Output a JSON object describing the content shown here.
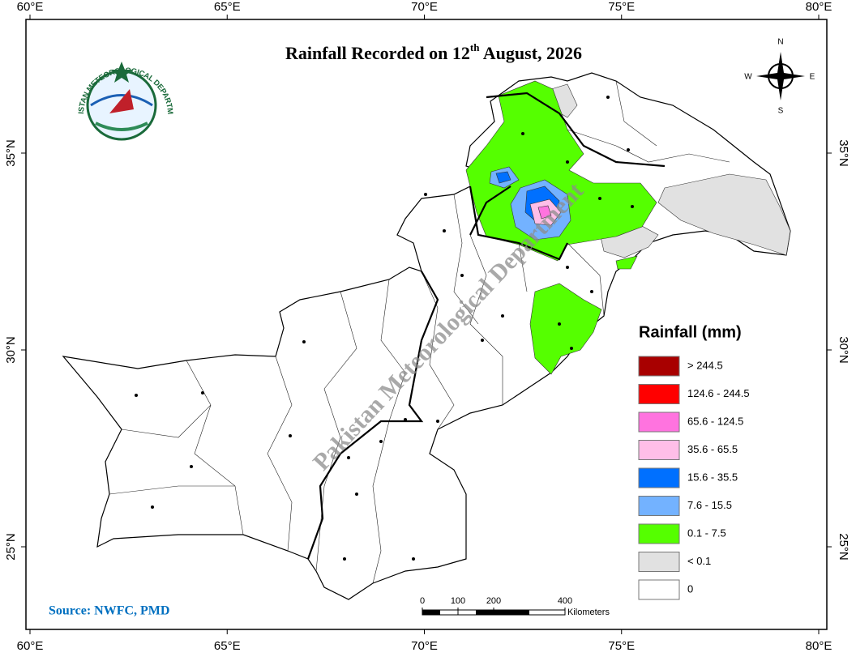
{
  "map": {
    "title": {
      "main": "Rainfall  Recorded on 12",
      "sup": "th",
      "rest": " August, 2026"
    },
    "logo_text": "PAKISTAN METEOROLOGICAL DEPARTMENT",
    "watermark": "Pakistan Meteorological Department",
    "source": "Source: NWFC, PMD",
    "compass": {
      "n": "N",
      "e": "E",
      "s": "S",
      "w": "W"
    },
    "lon_ticks": [
      {
        "value": 60,
        "label": "60°E"
      },
      {
        "value": 65,
        "label": "65°E"
      },
      {
        "value": 70,
        "label": "70°E"
      },
      {
        "value": 75,
        "label": "75°E"
      },
      {
        "value": 80,
        "label": "80°E"
      }
    ],
    "lat_ticks": [
      {
        "value": 35,
        "label": "35°N"
      },
      {
        "value": 30,
        "label": "30°N"
      },
      {
        "value": 25,
        "label": "25°N"
      }
    ],
    "scale_bar": {
      "ticks": [
        0,
        100,
        200,
        400
      ],
      "unit": "Kilometers"
    },
    "legend": {
      "title": "Rainfall (mm)",
      "items": [
        {
          "label": "> 244.5",
          "color": "#a80000"
        },
        {
          "label": "124.6 - 244.5",
          "color": "#ff0000"
        },
        {
          "label": "65.6 - 124.5",
          "color": "#ff73df"
        },
        {
          "label": "35.6 - 65.5",
          "color": "#ffbee8"
        },
        {
          "label": "15.6 - 35.5",
          "color": "#0070ff"
        },
        {
          "label": "7.6 - 15.5",
          "color": "#73b2ff"
        },
        {
          "label": "0.1 - 7.5",
          "color": "#55ff00"
        },
        {
          "label": "< 0.1",
          "color": "#e1e1e1"
        },
        {
          "label": "0",
          "color": "#ffffff"
        }
      ]
    }
  }
}
